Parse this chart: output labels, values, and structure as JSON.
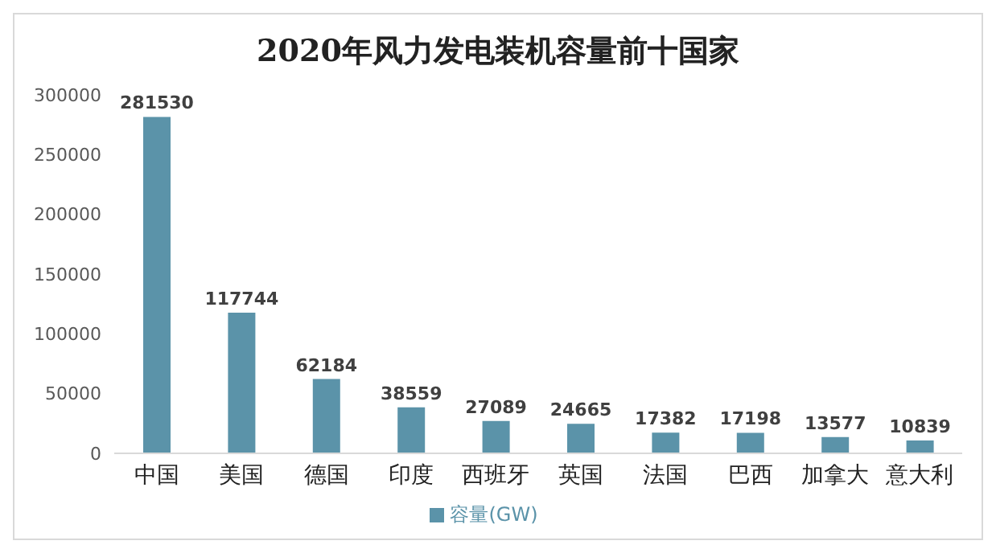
{
  "chart_data": {
    "type": "bar",
    "title": "2020年风力发电装机容量前十国家",
    "categories": [
      "中国",
      "美国",
      "德国",
      "印度",
      "西班牙",
      "英国",
      "法国",
      "巴西",
      "加拿大",
      "意大利"
    ],
    "series": [
      {
        "name": "容量(GW)",
        "color": "#5b93a9",
        "values": [
          281530,
          117744,
          62184,
          38559,
          27089,
          24665,
          17382,
          17198,
          13577,
          10839
        ]
      }
    ],
    "ylim": [
      0,
      300000
    ],
    "yticks": [
      0,
      50000,
      100000,
      150000,
      200000,
      250000,
      300000
    ],
    "grid": false,
    "legend": "bottom",
    "data_labels": true
  }
}
